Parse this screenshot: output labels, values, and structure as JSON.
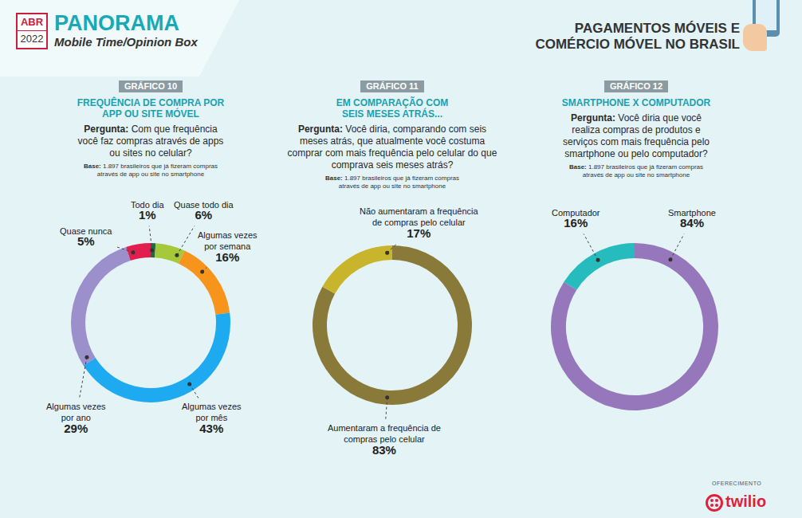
{
  "header": {
    "badge_month": "ABR",
    "badge_year": "2022",
    "title": "PANORAMA",
    "subtitle": "Mobile Time/Opinion Box",
    "section": [
      "PAGAMENTOS MÓVEIS E",
      "COMÉRCIO MÓVEL NO BRASIL"
    ]
  },
  "footer": {
    "label": "OFERECIMENTO",
    "sponsor": "twilio"
  },
  "chart_data": [
    {
      "type": "pie",
      "tag": "GRÁFICO 10",
      "title": "FREQUÊNCIA DE COMPRA POR APP OU SITE MÓVEL",
      "question_label": "Pergunta:",
      "question": "Com que frequência você faz compras através de apps ou sites no celular?",
      "base_label": "Base:",
      "base": "1.897 brasileiros que já fizeram compras através de app ou site no smartphone",
      "categories": [
        "Todo dia",
        "Quase todo dia",
        "Algumas vezes por semana",
        "Algumas vezes por mês",
        "Algumas vezes por ano",
        "Quase nunca"
      ],
      "values": [
        1,
        6,
        16,
        43,
        29,
        5
      ],
      "value_labels": [
        "1%",
        "6%",
        "16%",
        "43%",
        "29%",
        "5%"
      ],
      "colors": [
        "#1f6b3e",
        "#a5c93b",
        "#f6941c",
        "#1eaaf1",
        "#9c90cc",
        "#e21e4f"
      ],
      "data_labels": true
    },
    {
      "type": "pie",
      "tag": "GRÁFICO 11",
      "title": "EM COMPARAÇÃO COM SEIS MESES ATRÁS...",
      "question_label": "Pergunta:",
      "question": "Você diria, comparando com seis meses atrás, que atualmente você costuma comprar com mais frequência pelo celular do que comprava seis meses atrás?",
      "base_label": "Base:",
      "base": "1.897 brasileiros que já fizeram compras através de app ou site no smartphone",
      "categories": [
        "Aumentaram a frequência de compras pelo celular",
        "Não aumentaram a frequência de compras pelo celular"
      ],
      "values": [
        83,
        17
      ],
      "value_labels": [
        "83%",
        "17%"
      ],
      "colors": [
        "#8a7a3a",
        "#c8b52c"
      ],
      "data_labels": true
    },
    {
      "type": "pie",
      "tag": "GRÁFICO 12",
      "title": "SMARTPHONE X COMPUTADOR",
      "question_label": "Pergunta:",
      "question": "Você diria que você realiza compras de produtos e serviços com mais frequência pelo smartphone ou pelo computador?",
      "base_label": "Base:",
      "base": "1.897 brasileiros que já fizeram compras através de app ou site no smartphone",
      "categories": [
        "Smartphone",
        "Computador"
      ],
      "values": [
        84,
        16
      ],
      "value_labels": [
        "84%",
        "16%"
      ],
      "colors": [
        "#9677bb",
        "#26bcbd"
      ],
      "data_labels": true
    }
  ]
}
